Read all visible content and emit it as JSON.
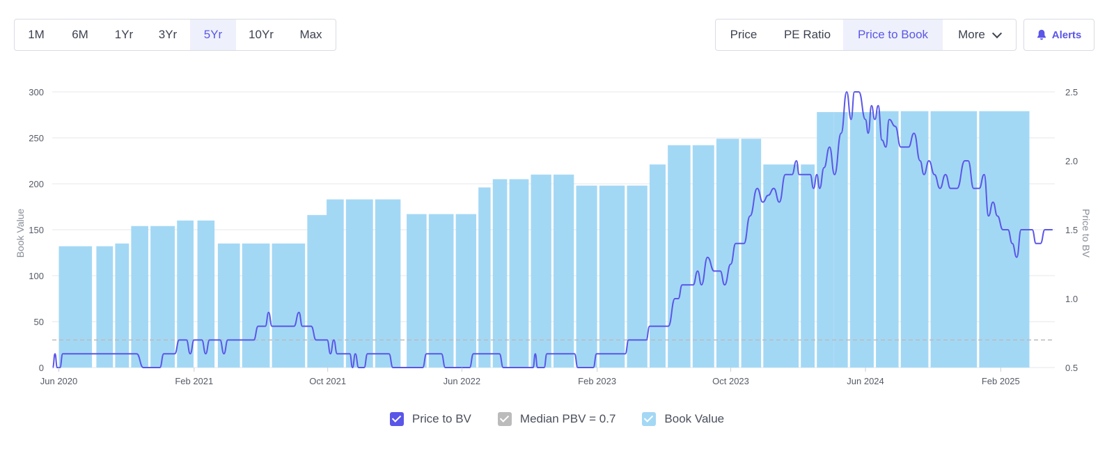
{
  "range_buttons": [
    {
      "label": "1M"
    },
    {
      "label": "6M"
    },
    {
      "label": "1Yr"
    },
    {
      "label": "3Yr"
    },
    {
      "label": "5Yr",
      "active": true
    },
    {
      "label": "10Yr"
    },
    {
      "label": "Max"
    }
  ],
  "metric_buttons": [
    {
      "label": "Price"
    },
    {
      "label": "PE Ratio"
    },
    {
      "label": "Price to Book",
      "active": true
    },
    {
      "label": "More"
    }
  ],
  "alerts_label": "Alerts",
  "colors": {
    "accent": "#5a56e8",
    "bar": "#a3d8f5",
    "median": "#bbbbbb",
    "grid": "#e6e7eb"
  },
  "chart_data": {
    "type": "bar+line",
    "ylabel_left": "Book Value",
    "ylabel_right": "Price to BV",
    "left_axis": {
      "min": 0,
      "max": 300,
      "ticks": [
        0,
        50,
        100,
        150,
        200,
        250,
        300
      ]
    },
    "right_axis": {
      "min": 0.5,
      "max": 2.5,
      "ticks": [
        "0.5",
        "1.0",
        "1.5",
        "2.0",
        "2.5"
      ]
    },
    "x_range": [
      "2020-05-20",
      "2025-05-10"
    ],
    "x_ticks": [
      {
        "label": "Jun 2020",
        "date": "2020-06-01"
      },
      {
        "label": "Feb 2021",
        "date": "2021-02-01"
      },
      {
        "label": "Oct 2021",
        "date": "2021-10-01"
      },
      {
        "label": "Jun 2022",
        "date": "2022-06-01"
      },
      {
        "label": "Feb 2023",
        "date": "2023-02-01"
      },
      {
        "label": "Oct 2023",
        "date": "2023-10-01"
      },
      {
        "label": "Jun 2024",
        "date": "2024-06-01"
      },
      {
        "label": "Feb 2025",
        "date": "2025-02-01"
      }
    ],
    "book_value_bars": [
      {
        "start": "2020-06-01",
        "end": "2020-07-31",
        "value": 132
      },
      {
        "start": "2020-08-08",
        "end": "2020-09-07",
        "value": 132
      },
      {
        "start": "2020-09-11",
        "end": "2020-10-06",
        "value": 135
      },
      {
        "start": "2020-10-10",
        "end": "2020-11-10",
        "value": 154
      },
      {
        "start": "2020-11-14",
        "end": "2020-12-28",
        "value": 154
      },
      {
        "start": "2021-01-01",
        "end": "2021-01-31",
        "value": 160
      },
      {
        "start": "2021-02-07",
        "end": "2021-03-10",
        "value": 160
      },
      {
        "start": "2021-03-16",
        "end": "2021-04-25",
        "value": 135
      },
      {
        "start": "2021-04-29",
        "end": "2021-06-18",
        "value": 135
      },
      {
        "start": "2021-06-22",
        "end": "2021-08-21",
        "value": 135
      },
      {
        "start": "2021-08-25",
        "end": "2021-09-30",
        "value": 166
      },
      {
        "start": "2021-09-29",
        "end": "2021-10-30",
        "value": 183
      },
      {
        "start": "2021-11-03",
        "end": "2021-12-22",
        "value": 183
      },
      {
        "start": "2021-12-26",
        "end": "2022-02-10",
        "value": 183
      },
      {
        "start": "2022-02-21",
        "end": "2022-03-29",
        "value": 167
      },
      {
        "start": "2022-04-02",
        "end": "2022-05-17",
        "value": 167
      },
      {
        "start": "2022-05-21",
        "end": "2022-06-27",
        "value": 167
      },
      {
        "start": "2022-07-01",
        "end": "2022-07-23",
        "value": 196
      },
      {
        "start": "2022-07-27",
        "end": "2022-08-22",
        "value": 205
      },
      {
        "start": "2022-08-26",
        "end": "2022-09-30",
        "value": 205
      },
      {
        "start": "2022-10-04",
        "end": "2022-11-10",
        "value": 210
      },
      {
        "start": "2022-11-14",
        "end": "2022-12-21",
        "value": 210
      },
      {
        "start": "2022-12-25",
        "end": "2023-02-01",
        "value": 198
      },
      {
        "start": "2023-02-05",
        "end": "2023-03-23",
        "value": 198
      },
      {
        "start": "2023-03-27",
        "end": "2023-05-03",
        "value": 198
      },
      {
        "start": "2023-05-07",
        "end": "2023-06-05",
        "value": 221
      },
      {
        "start": "2023-06-09",
        "end": "2023-07-20",
        "value": 242
      },
      {
        "start": "2023-07-24",
        "end": "2023-09-01",
        "value": 242
      },
      {
        "start": "2023-09-05",
        "end": "2023-10-16",
        "value": 249
      },
      {
        "start": "2023-10-20",
        "end": "2023-11-25",
        "value": 249
      },
      {
        "start": "2023-11-29",
        "end": "2024-02-01",
        "value": 221
      },
      {
        "start": "2024-02-05",
        "end": "2024-03-01",
        "value": 221
      },
      {
        "start": "2024-03-05",
        "end": "2024-04-05",
        "value": 278
      },
      {
        "start": "2024-04-05",
        "end": "2024-04-30",
        "value": 278
      },
      {
        "start": "2024-05-04",
        "end": "2024-06-16",
        "value": 278
      },
      {
        "start": "2024-06-20",
        "end": "2024-07-31",
        "value": 279
      },
      {
        "start": "2024-08-04",
        "end": "2024-09-23",
        "value": 279
      },
      {
        "start": "2024-09-27",
        "end": "2024-12-20",
        "value": 279
      },
      {
        "start": "2024-12-24",
        "end": "2025-03-25",
        "value": 279
      }
    ],
    "price_to_bv": [
      [
        "2020-05-21",
        0.5
      ],
      [
        "2020-05-25",
        0.6
      ],
      [
        "2020-05-29",
        0.5
      ],
      [
        "2020-06-03",
        0.5
      ],
      [
        "2020-06-08",
        0.6
      ],
      [
        "2020-07-01",
        0.6
      ],
      [
        "2020-08-01",
        0.6
      ],
      [
        "2020-09-01",
        0.6
      ],
      [
        "2020-10-01",
        0.6
      ],
      [
        "2020-10-20",
        0.6
      ],
      [
        "2020-11-01",
        0.5
      ],
      [
        "2020-12-01",
        0.5
      ],
      [
        "2020-12-08",
        0.6
      ],
      [
        "2020-12-28",
        0.6
      ],
      [
        "2021-01-05",
        0.7
      ],
      [
        "2021-01-18",
        0.7
      ],
      [
        "2021-01-25",
        0.6
      ],
      [
        "2021-02-01",
        0.7
      ],
      [
        "2021-02-15",
        0.7
      ],
      [
        "2021-02-22",
        0.6
      ],
      [
        "2021-03-01",
        0.7
      ],
      [
        "2021-03-20",
        0.7
      ],
      [
        "2021-03-27",
        0.6
      ],
      [
        "2021-04-03",
        0.7
      ],
      [
        "2021-05-01",
        0.7
      ],
      [
        "2021-05-20",
        0.7
      ],
      [
        "2021-05-28",
        0.8
      ],
      [
        "2021-06-10",
        0.8
      ],
      [
        "2021-06-16",
        0.9
      ],
      [
        "2021-06-22",
        0.8
      ],
      [
        "2021-07-15",
        0.8
      ],
      [
        "2021-08-01",
        0.8
      ],
      [
        "2021-08-10",
        0.9
      ],
      [
        "2021-08-16",
        0.8
      ],
      [
        "2021-09-01",
        0.8
      ],
      [
        "2021-09-10",
        0.7
      ],
      [
        "2021-09-30",
        0.7
      ],
      [
        "2021-10-06",
        0.6
      ],
      [
        "2021-10-12",
        0.7
      ],
      [
        "2021-10-18",
        0.6
      ],
      [
        "2021-11-10",
        0.6
      ],
      [
        "2021-11-15",
        0.5
      ],
      [
        "2021-11-20",
        0.6
      ],
      [
        "2021-11-26",
        0.5
      ],
      [
        "2021-12-06",
        0.5
      ],
      [
        "2021-12-12",
        0.6
      ],
      [
        "2022-01-20",
        0.6
      ],
      [
        "2022-01-27",
        0.5
      ],
      [
        "2022-03-01",
        0.5
      ],
      [
        "2022-03-22",
        0.5
      ],
      [
        "2022-03-29",
        0.6
      ],
      [
        "2022-04-25",
        0.6
      ],
      [
        "2022-05-02",
        0.5
      ],
      [
        "2022-06-15",
        0.5
      ],
      [
        "2022-06-22",
        0.6
      ],
      [
        "2022-07-15",
        0.6
      ],
      [
        "2022-08-08",
        0.6
      ],
      [
        "2022-08-15",
        0.5
      ],
      [
        "2022-09-15",
        0.5
      ],
      [
        "2022-10-08",
        0.5
      ],
      [
        "2022-10-12",
        0.6
      ],
      [
        "2022-10-16",
        0.5
      ],
      [
        "2022-10-28",
        0.5
      ],
      [
        "2022-11-02",
        0.6
      ],
      [
        "2022-12-01",
        0.6
      ],
      [
        "2022-12-22",
        0.6
      ],
      [
        "2022-12-28",
        0.5
      ],
      [
        "2023-01-25",
        0.5
      ],
      [
        "2023-01-31",
        0.6
      ],
      [
        "2023-03-01",
        0.6
      ],
      [
        "2023-03-24",
        0.6
      ],
      [
        "2023-03-30",
        0.7
      ],
      [
        "2023-05-01",
        0.7
      ],
      [
        "2023-05-07",
        0.8
      ],
      [
        "2023-06-10",
        0.8
      ],
      [
        "2023-06-22",
        1.0
      ],
      [
        "2023-06-28",
        1.0
      ],
      [
        "2023-07-05",
        1.1
      ],
      [
        "2023-07-25",
        1.1
      ],
      [
        "2023-08-02",
        1.2
      ],
      [
        "2023-08-09",
        1.1
      ],
      [
        "2023-08-20",
        1.3
      ],
      [
        "2023-09-01",
        1.2
      ],
      [
        "2023-09-12",
        1.2
      ],
      [
        "2023-09-20",
        1.1
      ],
      [
        "2023-10-01",
        1.25
      ],
      [
        "2023-10-10",
        1.4
      ],
      [
        "2023-10-25",
        1.4
      ],
      [
        "2023-11-05",
        1.6
      ],
      [
        "2023-11-18",
        1.8
      ],
      [
        "2023-11-28",
        1.7
      ],
      [
        "2023-12-08",
        1.75
      ],
      [
        "2023-12-18",
        1.8
      ],
      [
        "2023-12-28",
        1.7
      ],
      [
        "2024-01-08",
        1.9
      ],
      [
        "2024-01-20",
        1.9
      ],
      [
        "2024-01-28",
        2.0
      ],
      [
        "2024-02-02",
        1.9
      ],
      [
        "2024-02-22",
        1.9
      ],
      [
        "2024-02-28",
        1.8
      ],
      [
        "2024-03-05",
        1.9
      ],
      [
        "2024-03-10",
        1.8
      ],
      [
        "2024-03-18",
        1.95
      ],
      [
        "2024-03-28",
        2.1
      ],
      [
        "2024-04-06",
        1.9
      ],
      [
        "2024-04-18",
        2.2
      ],
      [
        "2024-04-28",
        2.5
      ],
      [
        "2024-05-06",
        2.3
      ],
      [
        "2024-05-12",
        2.5
      ],
      [
        "2024-05-20",
        2.5
      ],
      [
        "2024-06-01",
        2.3
      ],
      [
        "2024-06-06",
        2.2
      ],
      [
        "2024-06-12",
        2.4
      ],
      [
        "2024-06-18",
        2.3
      ],
      [
        "2024-06-24",
        2.4
      ],
      [
        "2024-07-01",
        2.15
      ],
      [
        "2024-07-08",
        2.1
      ],
      [
        "2024-07-14",
        2.3
      ],
      [
        "2024-07-25",
        2.25
      ],
      [
        "2024-08-04",
        2.1
      ],
      [
        "2024-08-18",
        2.1
      ],
      [
        "2024-08-28",
        2.2
      ],
      [
        "2024-09-08",
        2.0
      ],
      [
        "2024-09-15",
        1.9
      ],
      [
        "2024-09-24",
        2.0
      ],
      [
        "2024-10-04",
        1.9
      ],
      [
        "2024-10-14",
        1.8
      ],
      [
        "2024-10-24",
        1.9
      ],
      [
        "2024-11-02",
        1.8
      ],
      [
        "2024-11-14",
        1.8
      ],
      [
        "2024-11-28",
        2.0
      ],
      [
        "2024-12-04",
        2.0
      ],
      [
        "2024-12-14",
        1.8
      ],
      [
        "2024-12-24",
        1.8
      ],
      [
        "2025-01-02",
        1.9
      ],
      [
        "2025-01-10",
        1.6
      ],
      [
        "2025-01-18",
        1.7
      ],
      [
        "2025-01-26",
        1.6
      ],
      [
        "2025-02-05",
        1.5
      ],
      [
        "2025-02-14",
        1.5
      ],
      [
        "2025-02-22",
        1.4
      ],
      [
        "2025-03-02",
        1.3
      ],
      [
        "2025-03-10",
        1.5
      ],
      [
        "2025-03-20",
        1.5
      ],
      [
        "2025-03-30",
        1.5
      ],
      [
        "2025-04-06",
        1.4
      ],
      [
        "2025-04-14",
        1.4
      ],
      [
        "2025-04-22",
        1.5
      ],
      [
        "2025-05-06",
        1.5
      ]
    ],
    "median_pbv": 0.7,
    "legend": [
      {
        "label": "Price to BV",
        "color": "#5a56e8"
      },
      {
        "label": "Median PBV = 0.7",
        "color": "#bbbbbb"
      },
      {
        "label": "Book Value",
        "color": "#a3d8f5"
      }
    ],
    "legend_position": "bottom-center",
    "grid": true
  }
}
